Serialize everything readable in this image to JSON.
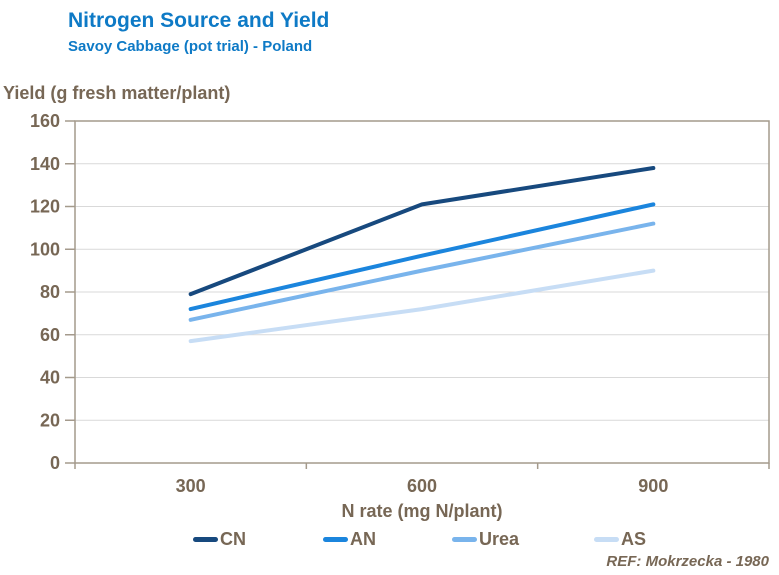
{
  "header": {
    "title": "Nitrogen Source and Yield",
    "subtitle": "Savoy Cabbage (pot trial) - Poland"
  },
  "footnote": {
    "ref": "REF: Mokrzecka - 1980"
  },
  "colors": {
    "title_blue": "#0e7ac6",
    "text_taupe": "#776755",
    "axis": "#a49a8c",
    "gridline": "#d9d9d9",
    "background": "#ffffff"
  },
  "chart_data": {
    "type": "line",
    "title": "Nitrogen Source and Yield",
    "subtitle": "Savoy Cabbage (pot trial) - Poland",
    "xlabel": "N rate (mg N/plant)",
    "ylabel": "Yield (g fresh matter/plant)",
    "categories": [
      "300",
      "600",
      "900"
    ],
    "x": [
      300,
      600,
      900
    ],
    "series": [
      {
        "name": "CN",
        "color": "#17497e",
        "values": [
          79,
          121,
          138
        ]
      },
      {
        "name": "AN",
        "color": "#1b85dd",
        "values": [
          72,
          97,
          121
        ]
      },
      {
        "name": "Urea",
        "color": "#79b4ec",
        "values": [
          67,
          90,
          112
        ]
      },
      {
        "name": "AS",
        "color": "#c7ddf5",
        "values": [
          57,
          72,
          90
        ]
      }
    ],
    "ylim": [
      0,
      160
    ],
    "ytick_step": 20,
    "grid": true,
    "legend_position": "bottom"
  }
}
